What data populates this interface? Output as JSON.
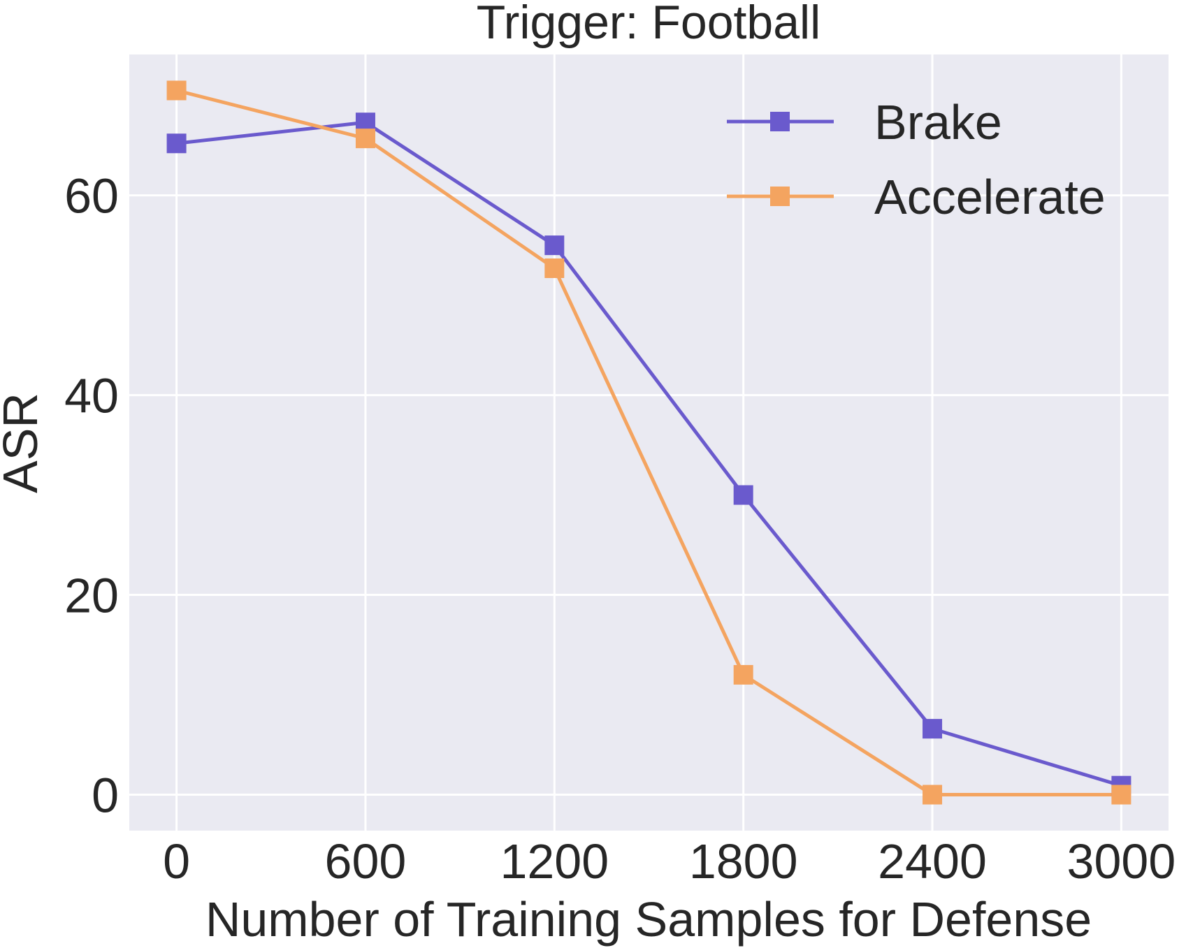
{
  "chart_data": {
    "type": "line",
    "title": "Trigger: Football",
    "xlabel": "Number of Training Samples for Defense",
    "ylabel": "ASR",
    "x": [
      0,
      600,
      1200,
      1800,
      2400,
      3000
    ],
    "x_ticks": [
      "0",
      "600",
      "1200",
      "1800",
      "2400",
      "3000"
    ],
    "y_ticks": [
      "0",
      "20",
      "40",
      "60"
    ],
    "xlim": [
      -150,
      3150
    ],
    "ylim": [
      -3.6,
      74.1
    ],
    "grid": true,
    "legend_position": "top-right",
    "background_color": "#eaeaf2",
    "series": [
      {
        "name": "Brake",
        "color": "#6a5acd",
        "marker": "square",
        "values": [
          65.2,
          67.3,
          55.0,
          30.0,
          6.6,
          0.9
        ]
      },
      {
        "name": "Accelerate",
        "color": "#f4a460",
        "marker": "square",
        "values": [
          70.5,
          65.7,
          52.7,
          12.0,
          0.0,
          0.0
        ]
      }
    ]
  }
}
